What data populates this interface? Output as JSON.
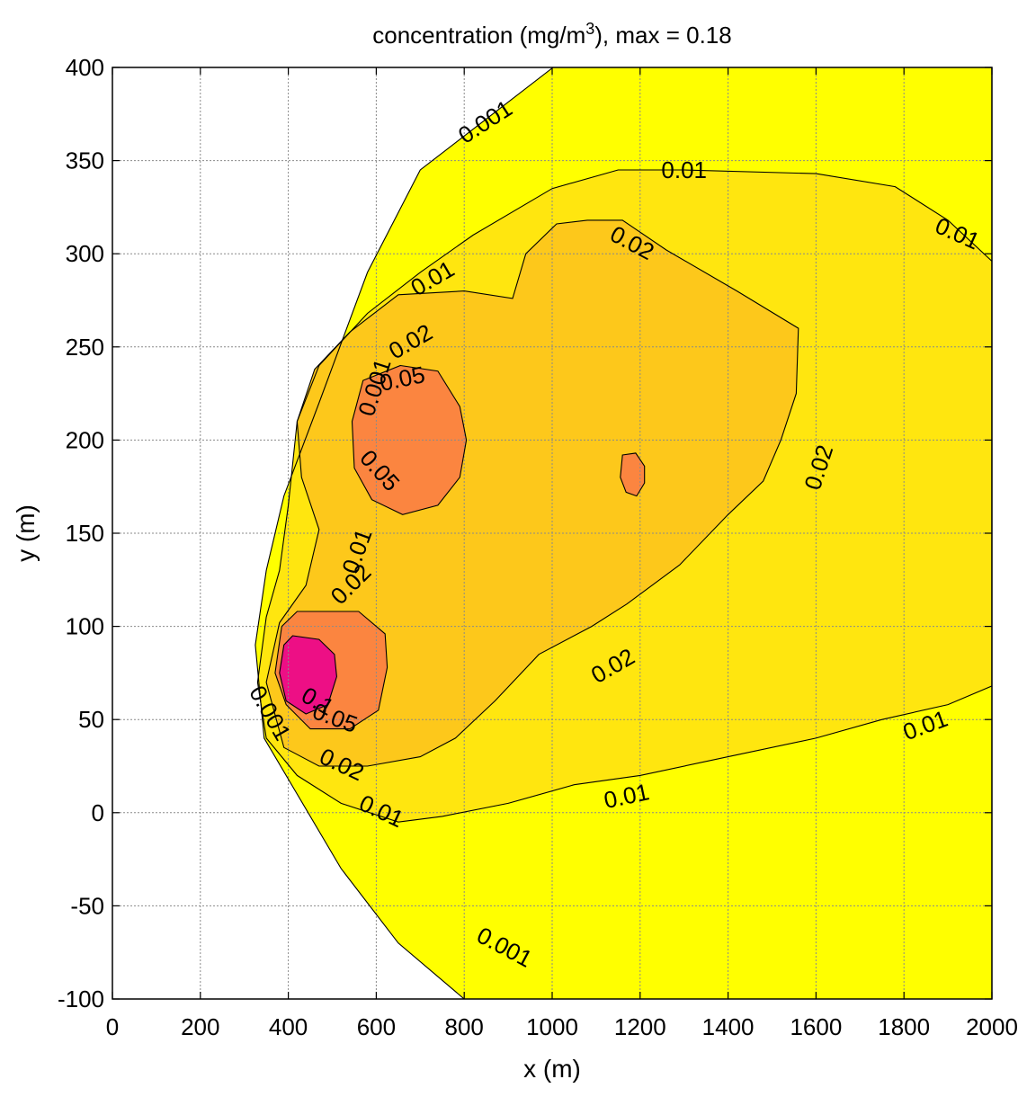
{
  "chart_data": {
    "type": "contour",
    "title_prefix": "concentration (mg/m",
    "title_sup": "3",
    "title_suffix": "), max =  0.18",
    "xlabel": "x (m)",
    "ylabel": "y (m)",
    "xlim": [
      0,
      2000
    ],
    "ylim": [
      -100,
      400
    ],
    "xticks": [
      0,
      200,
      400,
      600,
      800,
      1000,
      1200,
      1400,
      1600,
      1800,
      2000
    ],
    "yticks": [
      -100,
      -50,
      0,
      50,
      100,
      150,
      200,
      250,
      300,
      350,
      400
    ],
    "grid": true,
    "levels": [
      0.001,
      0.01,
      0.02,
      0.05,
      0.1
    ],
    "max_value": 0.18,
    "colors": {
      "background": "#ffffff",
      "level_0.001": "#ffff00",
      "level_0.01": "#ffe60f",
      "level_0.02": "#fdc81b",
      "level_0.05": "#fb8540",
      "level_0.1": "#ed0f85"
    },
    "contours": [
      {
        "level": 0.001,
        "fill": "#ffff00",
        "points": [
          [
            1002,
            400
          ],
          [
            700,
            345
          ],
          [
            580,
            290
          ],
          [
            470,
            220
          ],
          [
            390,
            170
          ],
          [
            350,
            130
          ],
          [
            325,
            90
          ],
          [
            345,
            40
          ],
          [
            420,
            10
          ],
          [
            520,
            -30
          ],
          [
            650,
            -70
          ],
          [
            800,
            -100
          ],
          [
            2000,
            -100
          ],
          [
            2000,
            400
          ]
        ]
      },
      {
        "level": 0.01,
        "fill": "#ffe60f",
        "points": [
          [
            2000,
            296
          ],
          [
            1900,
            318
          ],
          [
            1780,
            336
          ],
          [
            1600,
            343
          ],
          [
            1300,
            345
          ],
          [
            1150,
            345
          ],
          [
            1000,
            335
          ],
          [
            820,
            310
          ],
          [
            700,
            290
          ],
          [
            580,
            268
          ],
          [
            470,
            240
          ],
          [
            420,
            210
          ],
          [
            400,
            165
          ],
          [
            380,
            130
          ],
          [
            350,
            105
          ],
          [
            330,
            70
          ],
          [
            350,
            40
          ],
          [
            420,
            20
          ],
          [
            520,
            5
          ],
          [
            650,
            -5
          ],
          [
            750,
            -2
          ],
          [
            900,
            5
          ],
          [
            1050,
            15
          ],
          [
            1200,
            20
          ],
          [
            1400,
            30
          ],
          [
            1600,
            40
          ],
          [
            1750,
            50
          ],
          [
            1900,
            58
          ],
          [
            2000,
            68
          ]
        ]
      },
      {
        "level": 0.02,
        "fill": "#fdc81b",
        "points": [
          [
            1080,
            318
          ],
          [
            1010,
            316
          ],
          [
            940,
            300
          ],
          [
            910,
            276
          ],
          [
            800,
            280
          ],
          [
            650,
            278
          ],
          [
            540,
            258
          ],
          [
            460,
            238
          ],
          [
            420,
            210
          ],
          [
            430,
            180
          ],
          [
            470,
            152
          ],
          [
            440,
            122
          ],
          [
            380,
            102
          ],
          [
            350,
            70
          ],
          [
            390,
            35
          ],
          [
            470,
            25
          ],
          [
            580,
            25
          ],
          [
            700,
            30
          ],
          [
            780,
            40
          ],
          [
            870,
            60
          ],
          [
            970,
            85
          ],
          [
            1090,
            100
          ],
          [
            1170,
            112
          ],
          [
            1290,
            133
          ],
          [
            1400,
            160
          ],
          [
            1480,
            178
          ],
          [
            1520,
            200
          ],
          [
            1555,
            225
          ],
          [
            1560,
            260
          ],
          [
            1420,
            280
          ],
          [
            1260,
            302
          ],
          [
            1160,
            318
          ]
        ]
      },
      {
        "level": 0.05,
        "fill": "#fb8540",
        "points": [
          [
            655,
            240
          ],
          [
            740,
            237
          ],
          [
            790,
            218
          ],
          [
            805,
            200
          ],
          [
            790,
            180
          ],
          [
            740,
            165
          ],
          [
            660,
            160
          ],
          [
            590,
            168
          ],
          [
            550,
            185
          ],
          [
            545,
            210
          ],
          [
            570,
            232
          ]
        ]
      },
      {
        "level": 0.05,
        "fill": "#fb8540",
        "points": [
          [
            470,
            108
          ],
          [
            560,
            108
          ],
          [
            620,
            96
          ],
          [
            625,
            78
          ],
          [
            605,
            55
          ],
          [
            540,
            45
          ],
          [
            450,
            45
          ],
          [
            395,
            58
          ],
          [
            370,
            75
          ],
          [
            385,
            100
          ],
          [
            420,
            108
          ]
        ]
      },
      {
        "level": 0.05,
        "fill": "#fb8540",
        "points": [
          [
            1160,
            192
          ],
          [
            1190,
            193
          ],
          [
            1210,
            186
          ],
          [
            1210,
            177
          ],
          [
            1192,
            170
          ],
          [
            1168,
            172
          ],
          [
            1155,
            180
          ]
        ]
      },
      {
        "level": 0.1,
        "fill": "#ed0f85",
        "points": [
          [
            410,
            95
          ],
          [
            470,
            93
          ],
          [
            505,
            85
          ],
          [
            510,
            73
          ],
          [
            490,
            58
          ],
          [
            440,
            53
          ],
          [
            395,
            60
          ],
          [
            380,
            75
          ],
          [
            390,
            90
          ]
        ]
      }
    ],
    "contour_labels": [
      {
        "text": "0.001",
        "x": 850,
        "y": 370,
        "angle": -33
      },
      {
        "text": "0.01",
        "x": 1300,
        "y": 344,
        "angle": 0
      },
      {
        "text": "0.01",
        "x": 1920,
        "y": 310,
        "angle": 24
      },
      {
        "text": "0.02",
        "x": 1180,
        "y": 305,
        "angle": 28
      },
      {
        "text": "0.01",
        "x": 730,
        "y": 286,
        "angle": -30
      },
      {
        "text": "0.02",
        "x": 680,
        "y": 252,
        "angle": -30
      },
      {
        "text": "0.05",
        "x": 660,
        "y": 232,
        "angle": -12
      },
      {
        "text": "0.001",
        "x": 600,
        "y": 228,
        "angle": -72
      },
      {
        "text": "0.05",
        "x": 605,
        "y": 183,
        "angle": 48
      },
      {
        "text": "0.02",
        "x": 1610,
        "y": 185,
        "angle": -72
      },
      {
        "text": "0.01",
        "x": 560,
        "y": 140,
        "angle": -70
      },
      {
        "text": "0.02",
        "x": 545,
        "y": 122,
        "angle": -45
      },
      {
        "text": "0.02",
        "x": 1140,
        "y": 78,
        "angle": -30
      },
      {
        "text": "0.1",
        "x": 465,
        "y": 59,
        "angle": 30
      },
      {
        "text": "0.05",
        "x": 505,
        "y": 50,
        "angle": 20
      },
      {
        "text": "0.001",
        "x": 355,
        "y": 53,
        "angle": 60
      },
      {
        "text": "0.02",
        "x": 520,
        "y": 25,
        "angle": 25
      },
      {
        "text": "0.01",
        "x": 610,
        "y": 0,
        "angle": 25
      },
      {
        "text": "0.01",
        "x": 1170,
        "y": 8,
        "angle": -12
      },
      {
        "text": "0.01",
        "x": 1850,
        "y": 46,
        "angle": -20
      },
      {
        "text": "0.001",
        "x": 890,
        "y": -73,
        "angle": 28
      }
    ]
  }
}
